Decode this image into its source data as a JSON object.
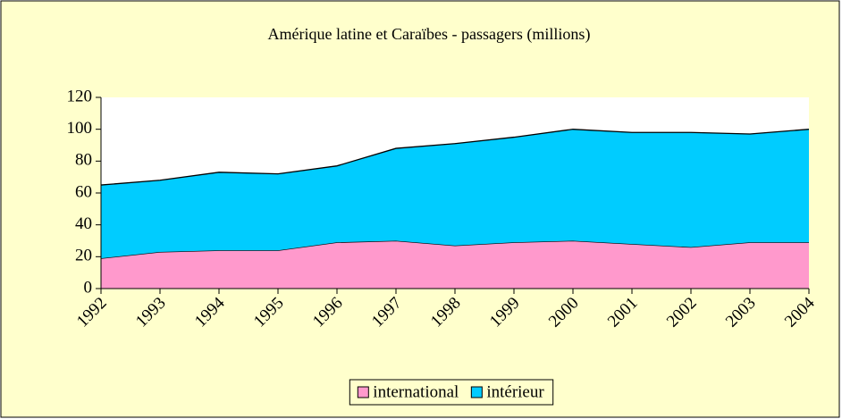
{
  "chart_data": {
    "type": "stacked_area",
    "title": "Amérique latine et Caraïbes - passagers (millions)",
    "categories": [
      "1992",
      "1993",
      "1994",
      "1995",
      "1996",
      "1997",
      "1998",
      "1999",
      "2000",
      "2001",
      "2002",
      "2003",
      "2004"
    ],
    "series": [
      {
        "name": "international",
        "color": "#ff99cc",
        "values": [
          19,
          23,
          24,
          24,
          29,
          30,
          27,
          29,
          30,
          28,
          26,
          29,
          29
        ]
      },
      {
        "name": "intérieur",
        "color": "#00ccff",
        "values": [
          46,
          45,
          49,
          48,
          48,
          58,
          64,
          66,
          70,
          70,
          72,
          68,
          71
        ]
      }
    ],
    "ylim": [
      0,
      120
    ],
    "yticks": [
      0,
      20,
      40,
      60,
      80,
      100,
      120
    ],
    "grid": false,
    "legend": "bottom"
  }
}
